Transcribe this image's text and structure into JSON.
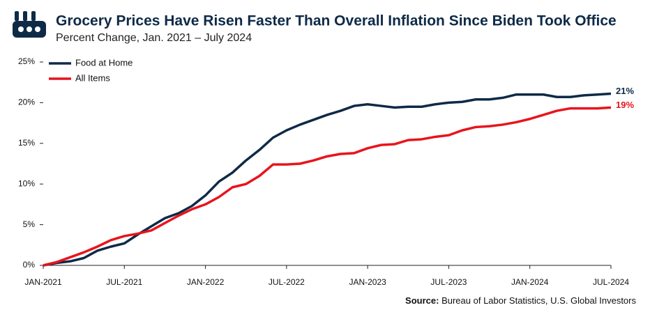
{
  "chart_data": {
    "type": "line",
    "title": "Grocery Prices Have Risen Faster Than Overall Inflation Since Biden Took Office",
    "subtitle": "Percent Change, Jan. 2021 – July 2024",
    "source_label": "Source:",
    "source": "Bureau of Labor Statistics, U.S. Global Investors",
    "categories": [
      "JAN-2021",
      null,
      null,
      null,
      null,
      null,
      "JUL-2021",
      null,
      null,
      null,
      null,
      null,
      "JAN-2022",
      null,
      null,
      null,
      null,
      null,
      "JUL-2022",
      null,
      null,
      null,
      null,
      null,
      "JAN-2023",
      null,
      null,
      null,
      null,
      null,
      "JUL-2023",
      null,
      null,
      null,
      null,
      null,
      "JAN-2024",
      null,
      null,
      null,
      null,
      null,
      "JUL-2024"
    ],
    "series": [
      {
        "name": "Food at Home",
        "color": "#0e2a47",
        "values": [
          0,
          0.3,
          0.5,
          0.9,
          1.8,
          2.3,
          2.7,
          3.8,
          4.8,
          5.8,
          6.4,
          7.3,
          8.6,
          10.3,
          11.4,
          12.9,
          14.2,
          15.7,
          16.6,
          17.3,
          17.9,
          18.5,
          19.0,
          19.6,
          19.8,
          19.6,
          19.4,
          19.5,
          19.5,
          19.8,
          20.0,
          20.1,
          20.4,
          20.4,
          20.6,
          21.0,
          21.0,
          21.0,
          20.7,
          20.7,
          20.9,
          21.0,
          21.1
        ],
        "value_labels": [
          null,
          null,
          null,
          null,
          null,
          null,
          null,
          null,
          null,
          null,
          null,
          null,
          null,
          null,
          null,
          null,
          null,
          null,
          null,
          null,
          null,
          null,
          null,
          null,
          null,
          null,
          null,
          null,
          null,
          null,
          null,
          null,
          null,
          null,
          null,
          null,
          null,
          null,
          null,
          null,
          null,
          null,
          "21%"
        ]
      },
      {
        "name": "All Items",
        "color": "#e8141c",
        "values": [
          0,
          0.4,
          1.0,
          1.6,
          2.3,
          3.1,
          3.6,
          3.9,
          4.3,
          5.2,
          6.1,
          6.9,
          7.5,
          8.4,
          9.6,
          10.0,
          11.0,
          12.4,
          12.4,
          12.5,
          12.9,
          13.4,
          13.7,
          13.8,
          14.4,
          14.8,
          14.9,
          15.4,
          15.5,
          15.8,
          16.0,
          16.6,
          17.0,
          17.1,
          17.3,
          17.6,
          18.0,
          18.5,
          19.0,
          19.3,
          19.3,
          19.3,
          19.4
        ],
        "value_labels": [
          null,
          null,
          null,
          null,
          null,
          null,
          null,
          null,
          null,
          null,
          null,
          null,
          null,
          null,
          null,
          null,
          null,
          null,
          null,
          null,
          null,
          null,
          null,
          null,
          null,
          null,
          null,
          null,
          null,
          null,
          null,
          null,
          null,
          null,
          null,
          null,
          null,
          null,
          null,
          null,
          null,
          null,
          "19%"
        ]
      }
    ],
    "ylim": [
      0,
      25
    ],
    "yticks": [
      {
        "value": 0,
        "label": "0%"
      },
      {
        "value": 5,
        "label": "5%"
      },
      {
        "value": 10,
        "label": "10%"
      },
      {
        "value": 15,
        "label": "15%"
      },
      {
        "value": 20,
        "label": "20%"
      },
      {
        "value": 25,
        "label": "25%"
      }
    ],
    "legend": "top-left"
  }
}
